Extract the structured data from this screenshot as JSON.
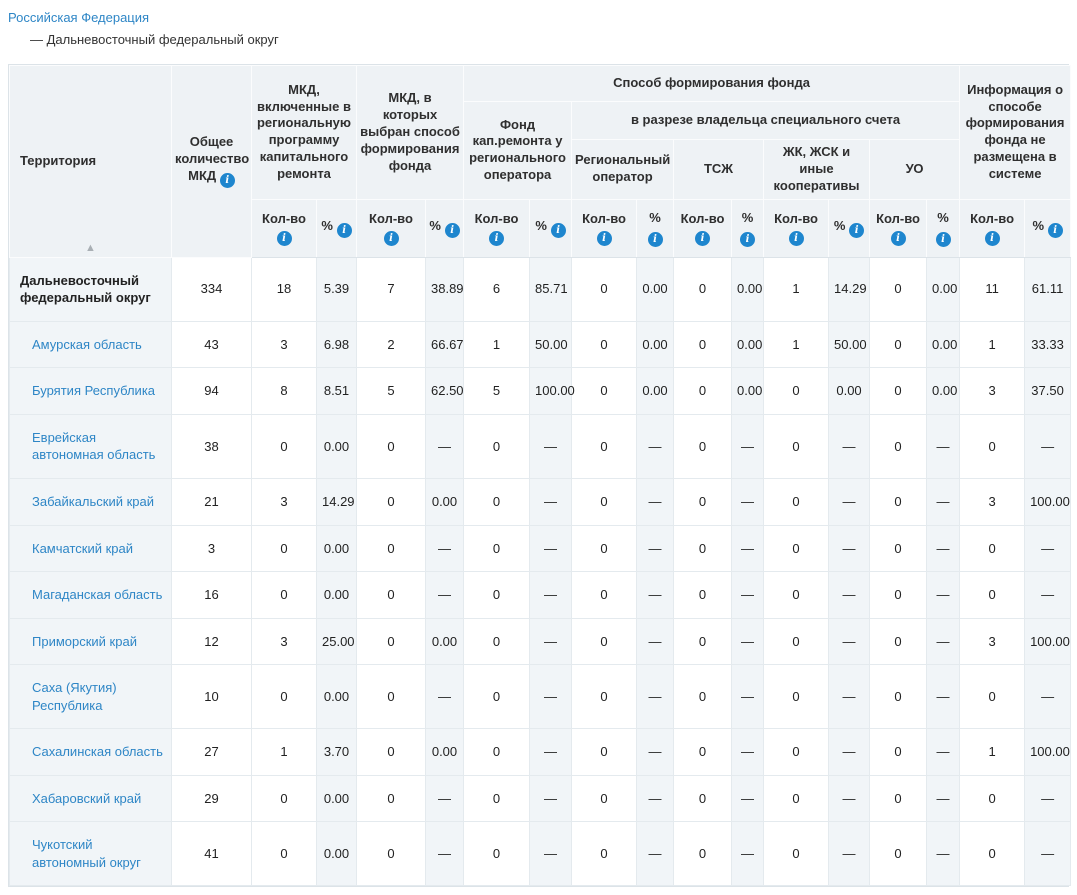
{
  "breadcrumb": {
    "root": "Российская Федерация",
    "current": "— Дальневосточный федеральный округ"
  },
  "icons": {
    "info_glyph": "i",
    "sort_asc_glyph": "▲"
  },
  "colors": {
    "link_blue": "#2e86c6",
    "info_icon_blue": "#1e86ce",
    "header_bg": "#eef2f5",
    "tint_cell_bg": "#f1f5f8",
    "border": "#dce3e8"
  },
  "table": {
    "headers": {
      "territory": "Территория",
      "total": "Общее количество МКД",
      "included_program": "МКД, включенные в региональную программу капитального ремонта",
      "method_chosen": "МКД, в которых выбран способ формирования фонда",
      "fund_method": "Способ формирования фонда",
      "fund_regional_operator": "Фонд кап.ремонта у регионального оператора",
      "special_account_owner": "в разрезе владельца специального счета",
      "regional_operator": "Региональный оператор",
      "tsj": "ТСЖ",
      "jk": "ЖК, ЖСК и иные кооперативы",
      "uo": "УО",
      "no_info": "Информация о способе формирования фонда не размещена в системе",
      "count": "Кол-во",
      "percent": "%"
    },
    "rows": [
      {
        "territory": "Дальневосточный федеральный округ",
        "bold": true,
        "values": [
          "334",
          "18",
          "5.39",
          "7",
          "38.89",
          "6",
          "85.71",
          "0",
          "0.00",
          "0",
          "0.00",
          "1",
          "14.29",
          "0",
          "0.00",
          "11",
          "61.11"
        ]
      },
      {
        "territory": "Амурская область",
        "bold": false,
        "values": [
          "43",
          "3",
          "6.98",
          "2",
          "66.67",
          "1",
          "50.00",
          "0",
          "0.00",
          "0",
          "0.00",
          "1",
          "50.00",
          "0",
          "0.00",
          "1",
          "33.33"
        ]
      },
      {
        "territory": "Бурятия Республика",
        "bold": false,
        "values": [
          "94",
          "8",
          "8.51",
          "5",
          "62.50",
          "5",
          "100.00",
          "0",
          "0.00",
          "0",
          "0.00",
          "0",
          "0.00",
          "0",
          "0.00",
          "3",
          "37.50"
        ]
      },
      {
        "territory": "Еврейская автономная область",
        "bold": false,
        "values": [
          "38",
          "0",
          "0.00",
          "0",
          "—",
          "0",
          "—",
          "0",
          "—",
          "0",
          "—",
          "0",
          "—",
          "0",
          "—",
          "0",
          "—"
        ]
      },
      {
        "territory": "Забайкальский край",
        "bold": false,
        "values": [
          "21",
          "3",
          "14.29",
          "0",
          "0.00",
          "0",
          "—",
          "0",
          "—",
          "0",
          "—",
          "0",
          "—",
          "0",
          "—",
          "3",
          "100.00"
        ]
      },
      {
        "territory": "Камчатский край",
        "bold": false,
        "values": [
          "3",
          "0",
          "0.00",
          "0",
          "—",
          "0",
          "—",
          "0",
          "—",
          "0",
          "—",
          "0",
          "—",
          "0",
          "—",
          "0",
          "—"
        ]
      },
      {
        "territory": "Магаданская область",
        "bold": false,
        "values": [
          "16",
          "0",
          "0.00",
          "0",
          "—",
          "0",
          "—",
          "0",
          "—",
          "0",
          "—",
          "0",
          "—",
          "0",
          "—",
          "0",
          "—"
        ]
      },
      {
        "territory": "Приморский край",
        "bold": false,
        "values": [
          "12",
          "3",
          "25.00",
          "0",
          "0.00",
          "0",
          "—",
          "0",
          "—",
          "0",
          "—",
          "0",
          "—",
          "0",
          "—",
          "3",
          "100.00"
        ]
      },
      {
        "territory": "Саха (Якутия) Республика",
        "bold": false,
        "values": [
          "10",
          "0",
          "0.00",
          "0",
          "—",
          "0",
          "—",
          "0",
          "—",
          "0",
          "—",
          "0",
          "—",
          "0",
          "—",
          "0",
          "—"
        ]
      },
      {
        "territory": "Сахалинская область",
        "bold": false,
        "values": [
          "27",
          "1",
          "3.70",
          "0",
          "0.00",
          "0",
          "—",
          "0",
          "—",
          "0",
          "—",
          "0",
          "—",
          "0",
          "—",
          "1",
          "100.00"
        ]
      },
      {
        "territory": "Хабаровский край",
        "bold": false,
        "values": [
          "29",
          "0",
          "0.00",
          "0",
          "—",
          "0",
          "—",
          "0",
          "—",
          "0",
          "—",
          "0",
          "—",
          "0",
          "—",
          "0",
          "—"
        ]
      },
      {
        "territory": "Чукотский автономный округ",
        "bold": false,
        "values": [
          "41",
          "0",
          "0.00",
          "0",
          "—",
          "0",
          "—",
          "0",
          "—",
          "0",
          "—",
          "0",
          "—",
          "0",
          "—",
          "0",
          "—"
        ]
      }
    ]
  }
}
